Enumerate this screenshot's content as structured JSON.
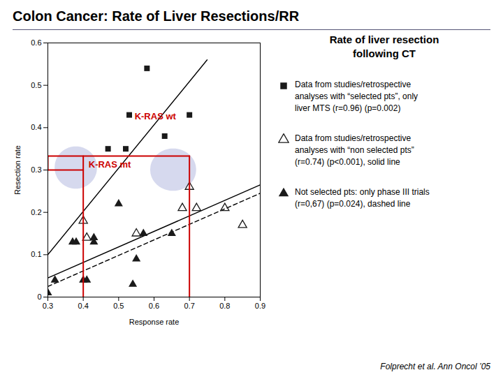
{
  "chart_data": {
    "type": "scatter",
    "title": "Colon Cancer: Rate of Liver Resections/RR",
    "subtitle": "Rate of liver resection\nfollowing CT",
    "xlabel": "Response rate",
    "ylabel": "Resection rate",
    "xlim": [
      0.3,
      0.9
    ],
    "ylim": [
      0.0,
      0.6
    ],
    "xticks": [
      0.3,
      0.4,
      0.5,
      0.6,
      0.7,
      0.8,
      0.9
    ],
    "yticks": [
      0,
      0.1,
      0.2,
      0.3,
      0.4,
      0.5,
      0.6
    ],
    "legend": "right",
    "ellipses": [
      {
        "x": 0.38,
        "y": 0.305,
        "width": 0.12,
        "height": 0.1,
        "color": "#c8cce8"
      },
      {
        "x": 0.655,
        "y": 0.3,
        "width": 0.13,
        "height": 0.1,
        "color": "#c8cce8"
      }
    ],
    "series": [
      {
        "type": "line",
        "color": "#000000",
        "line_style": "solid",
        "x": [
          0.3,
          0.75
        ],
        "values": [
          0.1,
          0.56
        ]
      },
      {
        "type": "line",
        "color": "#000000",
        "line_style": "solid",
        "x": [
          0.3,
          0.9
        ],
        "values": [
          0.045,
          0.265
        ]
      },
      {
        "type": "line",
        "color": "#000000",
        "line_style": "dashed",
        "x": [
          0.3,
          0.9
        ],
        "values": [
          0.025,
          0.245
        ]
      },
      {
        "type": "scatter",
        "name": "Data from studies/retrospective\nanalyses with “selected pts”, only\nliver MTS (r=0.96) (p=0.002)",
        "marker": "square",
        "color": "#1a1a1a",
        "x": [
          0.47,
          0.52,
          0.53,
          0.58,
          0.63,
          0.7
        ],
        "values": [
          0.35,
          0.35,
          0.43,
          0.54,
          0.38,
          0.43
        ]
      },
      {
        "type": "scatter",
        "name": "Data from studies/retrospective\nanalyses with “non selected pts”\n(r=0.74) (p<0.001), solid line",
        "marker": "triangle_open",
        "color": "#1a1a1a",
        "x": [
          0.4,
          0.41,
          0.55,
          0.68,
          0.7,
          0.72,
          0.8,
          0.85
        ],
        "values": [
          0.18,
          0.14,
          0.15,
          0.21,
          0.26,
          0.21,
          0.21,
          0.17
        ]
      },
      {
        "type": "scatter",
        "name": "Not selected pts: only phase III trials\n(r=0,67) (p=0.024), dashed line",
        "marker": "triangle",
        "color": "#1a1a1a",
        "x": [
          0.3,
          0.32,
          0.37,
          0.38,
          0.4,
          0.41,
          0.43,
          0.43,
          0.5,
          0.55,
          0.57,
          0.54,
          0.65
        ],
        "values": [
          0.01,
          0.04,
          0.13,
          0.13,
          0.04,
          0.04,
          0.13,
          0.14,
          0.22,
          0.09,
          0.15,
          0.03,
          0.15
        ]
      },
      {
        "type": "line",
        "color": "#cc0000",
        "line_style": "solid",
        "x": [
          0.3,
          0.7
        ],
        "values": [
          0.333,
          0.333
        ]
      },
      {
        "type": "line",
        "color": "#cc0000",
        "line_style": "solid",
        "x": [
          0.3,
          0.4
        ],
        "values": [
          0.3,
          0.3
        ]
      },
      {
        "type": "line",
        "color": "#cc0000",
        "line_style": "solid",
        "x": [
          0.3,
          0.3
        ],
        "values": [
          0.3,
          0.333
        ]
      },
      {
        "type": "line",
        "color": "#cc0000",
        "line_style": "solid",
        "x": [
          0.4,
          0.4
        ],
        "values": [
          0.0,
          0.333
        ]
      },
      {
        "type": "line",
        "color": "#cc0000",
        "line_style": "solid",
        "x": [
          0.7,
          0.7
        ],
        "values": [
          0.0,
          0.333
        ]
      }
    ],
    "annotations": [
      {
        "text": "K-RAS wt",
        "x": 0.545,
        "y": 0.42,
        "color": "#cc0000"
      },
      {
        "text": "K-RAS mt",
        "x": 0.415,
        "y": 0.305,
        "color": "#cc0000"
      }
    ],
    "footnote": "Folprecht et al. Ann Oncol ’05"
  }
}
